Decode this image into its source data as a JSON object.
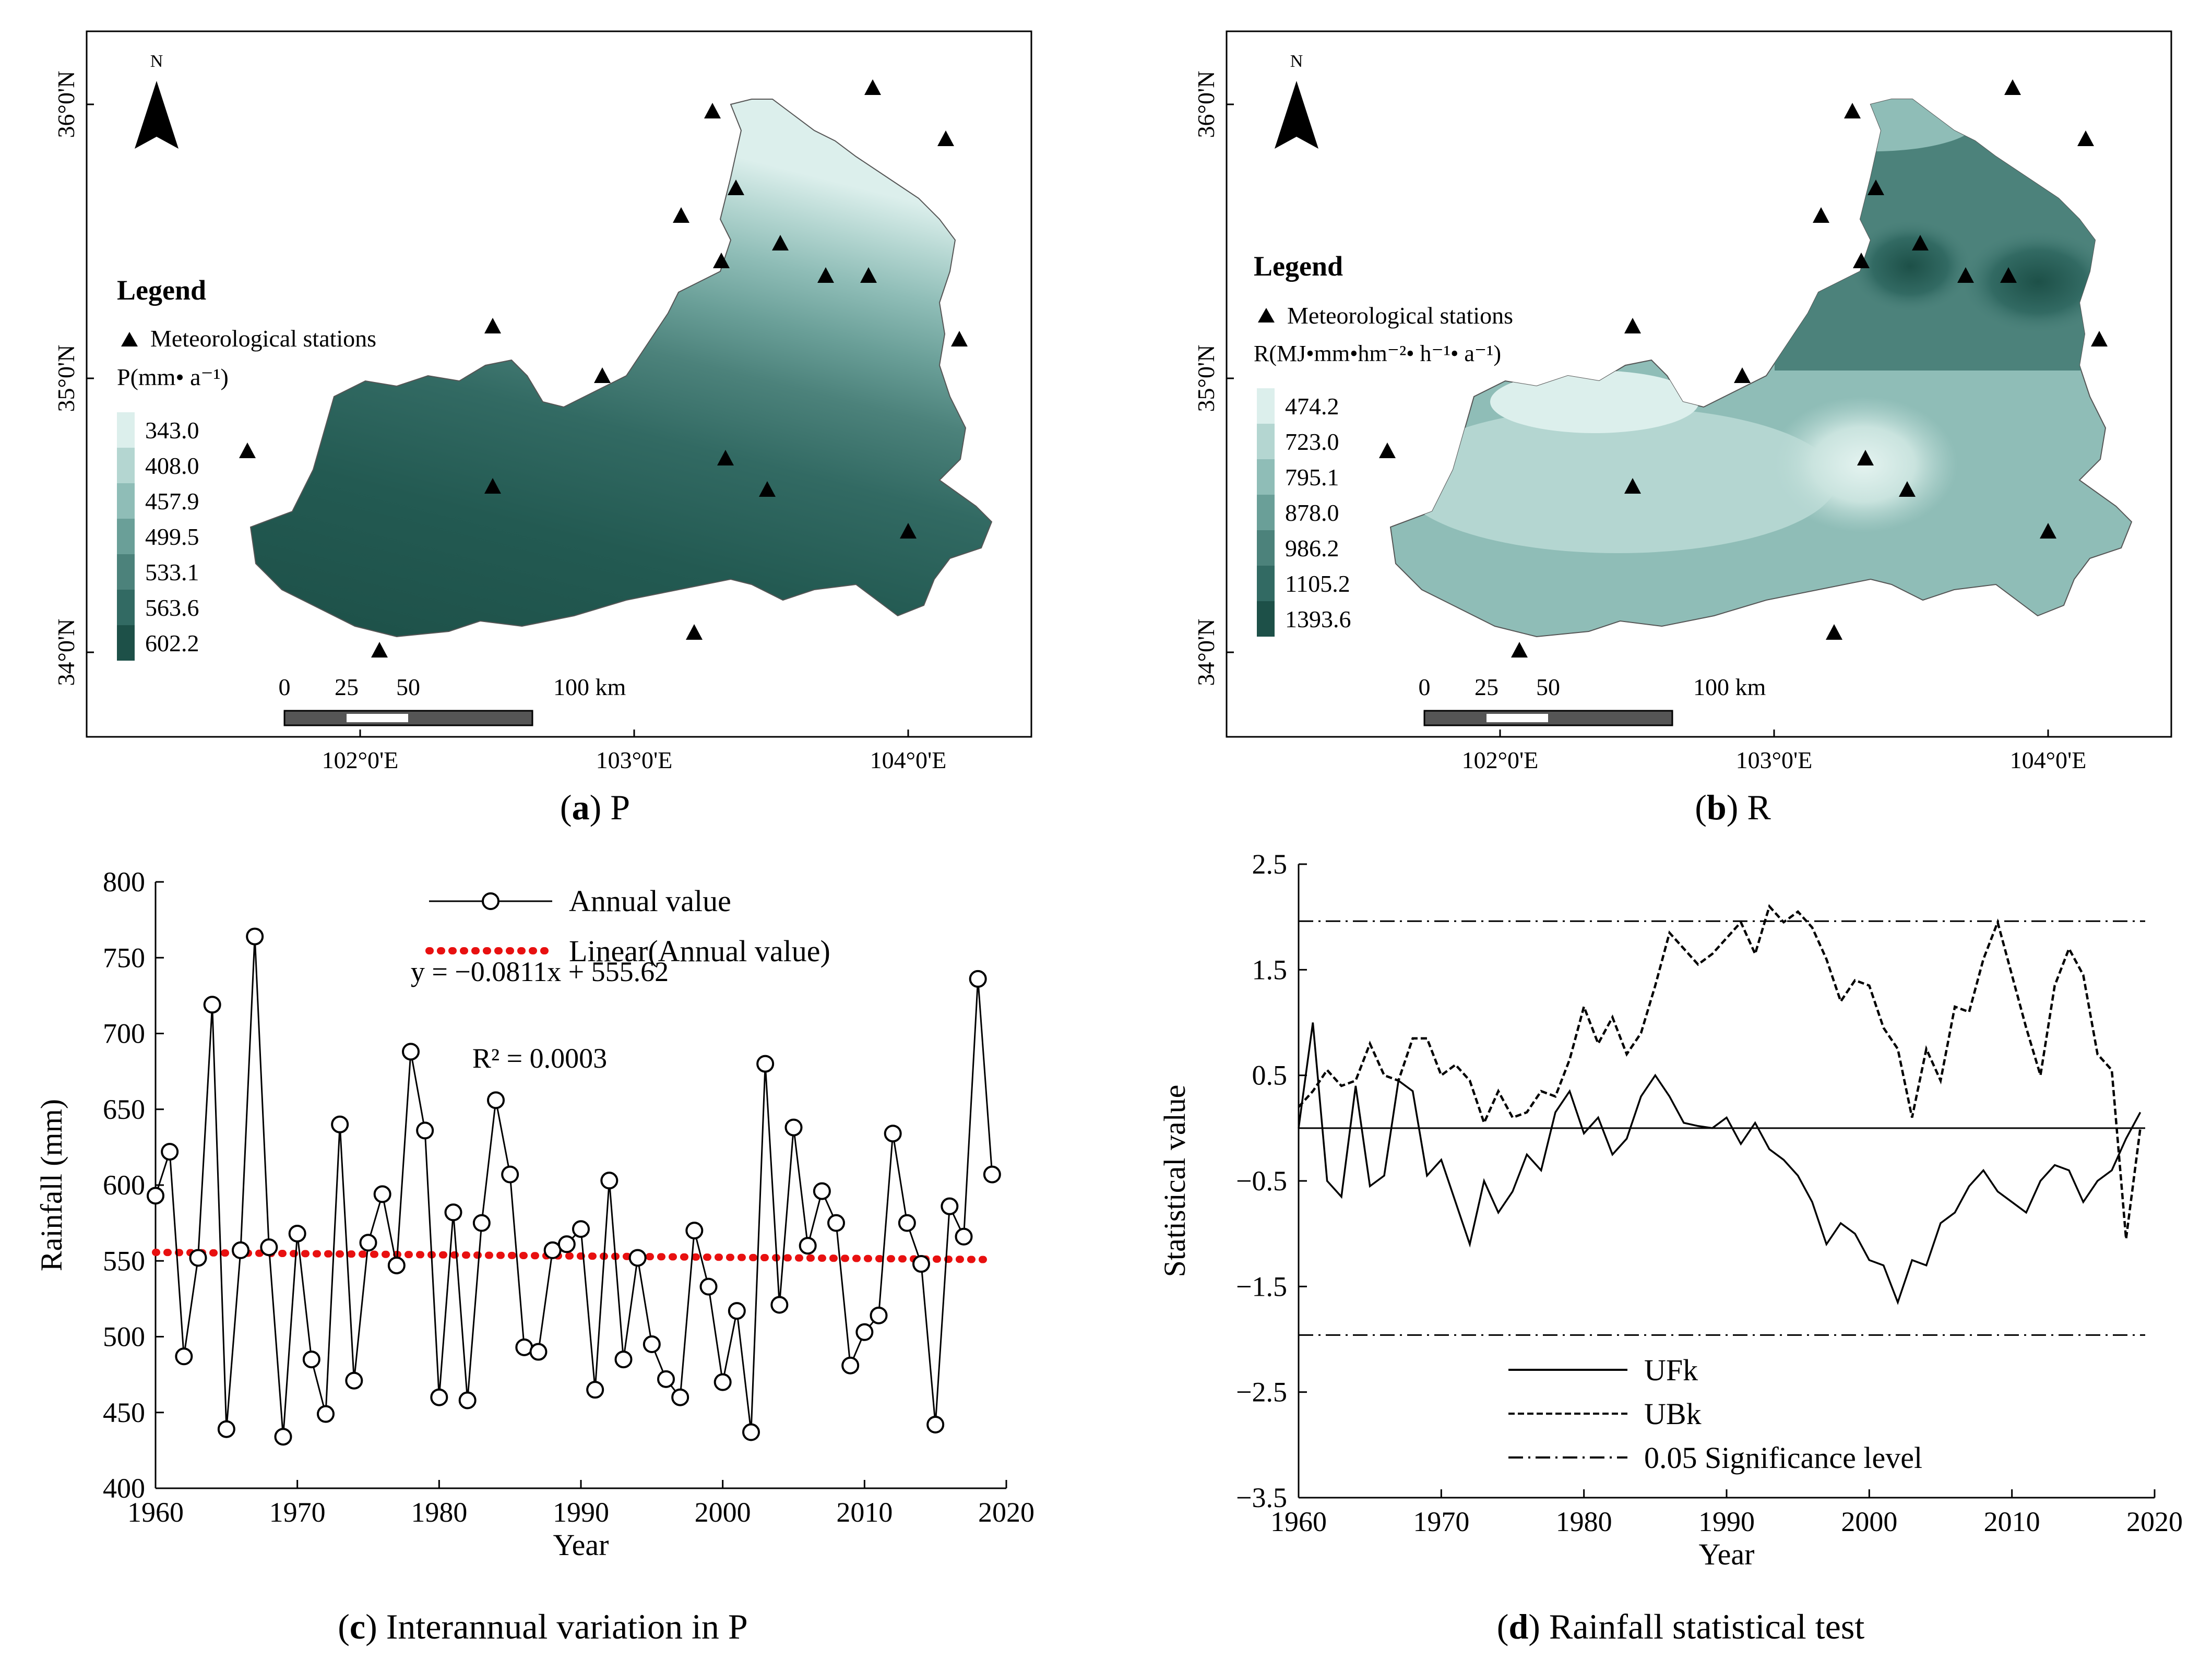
{
  "panel_a": {
    "caption_letter": "a",
    "caption_text": " P",
    "north": "N",
    "legend_title": "Legend",
    "stations_label": "Meteorological stations",
    "var_label": "P(mm• a⁻¹)",
    "classes": [
      "343.0",
      "408.0",
      "457.9",
      "499.5",
      "533.1",
      "563.6",
      "602.2"
    ],
    "lat_labels": [
      "36°0'N",
      "35°0'N",
      "34°0'N"
    ],
    "lon_labels": [
      "102°0'E",
      "103°0'E",
      "104°0'E"
    ],
    "scale_labels": [
      "0",
      "25",
      "50",
      "100 km"
    ]
  },
  "panel_b": {
    "caption_letter": "b",
    "caption_text": " R",
    "north": "N",
    "legend_title": "Legend",
    "stations_label": "Meteorological stations",
    "var_label": "R(MJ•mm•hm⁻²• h⁻¹• a⁻¹)",
    "classes": [
      "474.2",
      "723.0",
      "795.1",
      "878.0",
      "986.2",
      "1105.2",
      "1393.6"
    ],
    "lat_labels": [
      "36°0'N",
      "35°0'N",
      "34°0'N"
    ],
    "lon_labels": [
      "102°0'E",
      "103°0'E",
      "104°0'E"
    ],
    "scale_labels": [
      "0",
      "25",
      "50",
      "100 km"
    ]
  },
  "class_colors": [
    "#dcefec",
    "#b4d6d1",
    "#8fbdb7",
    "#6a9f98",
    "#4c827b",
    "#326a63",
    "#1d5048"
  ],
  "panel_c": {
    "caption_letter": "c",
    "caption_text": " Interannual variation in P",
    "equation": "y = −0.0811x + 555.62",
    "r2": "R² = 0.0003"
  },
  "panel_d": {
    "caption_letter": "d",
    "caption_text": " Rainfall statistical test"
  },
  "chart_data": [
    {
      "type": "line",
      "title": "Interannual variation in P",
      "xlabel": "Year",
      "ylabel": "Rainfall (mm)",
      "xlim": [
        1960,
        2020
      ],
      "ylim": [
        400,
        800
      ],
      "xticks": [
        1960,
        1970,
        1980,
        1990,
        2000,
        2010,
        2020
      ],
      "yticks": [
        400,
        450,
        500,
        550,
        600,
        650,
        700,
        750,
        800
      ],
      "x": [
        1960,
        1961,
        1962,
        1963,
        1964,
        1965,
        1966,
        1967,
        1968,
        1969,
        1970,
        1971,
        1972,
        1973,
        1974,
        1975,
        1976,
        1977,
        1978,
        1979,
        1980,
        1981,
        1982,
        1983,
        1984,
        1985,
        1986,
        1987,
        1988,
        1989,
        1990,
        1991,
        1992,
        1993,
        1994,
        1995,
        1996,
        1997,
        1998,
        1999,
        2000,
        2001,
        2002,
        2003,
        2004,
        2005,
        2006,
        2007,
        2008,
        2009,
        2010,
        2011,
        2012,
        2013,
        2014,
        2015,
        2016,
        2017,
        2018,
        2019
      ],
      "series": [
        {
          "name": "Annual value",
          "values": [
            593,
            622,
            487,
            552,
            719,
            439,
            557,
            764,
            559,
            434,
            568,
            485,
            449,
            640,
            471,
            562,
            594,
            547,
            688,
            636,
            460,
            582,
            458,
            575,
            656,
            607,
            493,
            490,
            557,
            561,
            571,
            465,
            603,
            485,
            552,
            495,
            472,
            460,
            570,
            533,
            470,
            517,
            437,
            680,
            521,
            638,
            560,
            596,
            575,
            481,
            503,
            514,
            634,
            575,
            548,
            442,
            586,
            566,
            736,
            607
          ]
        },
        {
          "name": "Linear(Annual value)",
          "trend_slope": -0.0811,
          "trend_intercept": 555.62
        }
      ],
      "legend": "top"
    },
    {
      "type": "line",
      "title": "Rainfall statistical test",
      "xlabel": "Year",
      "ylabel": "Statistical value",
      "xlim": [
        1960,
        2020
      ],
      "ylim": [
        -3.5,
        2.5
      ],
      "xticks": [
        1960,
        1970,
        1980,
        1990,
        2000,
        2010,
        2020
      ],
      "yticks": [
        -3.5,
        -2.5,
        -1.5,
        -0.5,
        0.5,
        1.5,
        2.5
      ],
      "ytick_labels": [
        "−3.5",
        "−2.5",
        "−1.5",
        "−0.5",
        "0.5",
        "1.5",
        "2.5"
      ],
      "x": [
        1960,
        1961,
        1962,
        1963,
        1964,
        1965,
        1966,
        1967,
        1968,
        1969,
        1970,
        1971,
        1972,
        1973,
        1974,
        1975,
        1976,
        1977,
        1978,
        1979,
        1980,
        1981,
        1982,
        1983,
        1984,
        1985,
        1986,
        1987,
        1988,
        1989,
        1990,
        1991,
        1992,
        1993,
        1994,
        1995,
        1996,
        1997,
        1998,
        1999,
        2000,
        2001,
        2002,
        2003,
        2004,
        2005,
        2006,
        2007,
        2008,
        2009,
        2010,
        2011,
        2012,
        2013,
        2014,
        2015,
        2016,
        2017,
        2018,
        2019
      ],
      "series": [
        {
          "name": "UFk",
          "values": [
            0.0,
            1.0,
            -0.5,
            -0.65,
            0.4,
            -0.55,
            -0.45,
            0.45,
            0.35,
            -0.45,
            -0.3,
            -0.7,
            -1.1,
            -0.5,
            -0.8,
            -0.6,
            -0.25,
            -0.4,
            0.15,
            0.35,
            -0.05,
            0.1,
            -0.25,
            -0.1,
            0.3,
            0.5,
            0.3,
            0.05,
            0.02,
            0.0,
            0.1,
            -0.15,
            0.05,
            -0.2,
            -0.3,
            -0.45,
            -0.7,
            -1.1,
            -0.9,
            -1.0,
            -1.25,
            -1.3,
            -1.65,
            -1.25,
            -1.3,
            -0.9,
            -0.8,
            -0.55,
            -0.4,
            -0.6,
            -0.7,
            -0.8,
            -0.5,
            -0.35,
            -0.4,
            -0.7,
            -0.5,
            -0.4,
            -0.1,
            0.15
          ]
        },
        {
          "name": "UBk",
          "values": [
            0.2,
            0.35,
            0.55,
            0.4,
            0.45,
            0.8,
            0.5,
            0.45,
            0.85,
            0.85,
            0.5,
            0.6,
            0.45,
            0.05,
            0.35,
            0.1,
            0.15,
            0.35,
            0.3,
            0.65,
            1.15,
            0.8,
            1.05,
            0.7,
            0.9,
            1.35,
            1.85,
            1.7,
            1.55,
            1.65,
            1.8,
            1.95,
            1.65,
            2.1,
            1.95,
            2.05,
            1.9,
            1.6,
            1.2,
            1.4,
            1.35,
            0.95,
            0.75,
            0.1,
            0.75,
            0.45,
            1.15,
            1.1,
            1.6,
            1.95,
            1.45,
            0.95,
            0.5,
            1.35,
            1.7,
            1.45,
            0.7,
            0.55,
            -1.05,
            0.0
          ]
        },
        {
          "name": "0.05 Significance level",
          "values_constant": [
            1.96,
            -1.96
          ]
        }
      ],
      "reference_line": 0,
      "legend": "bottom"
    }
  ]
}
